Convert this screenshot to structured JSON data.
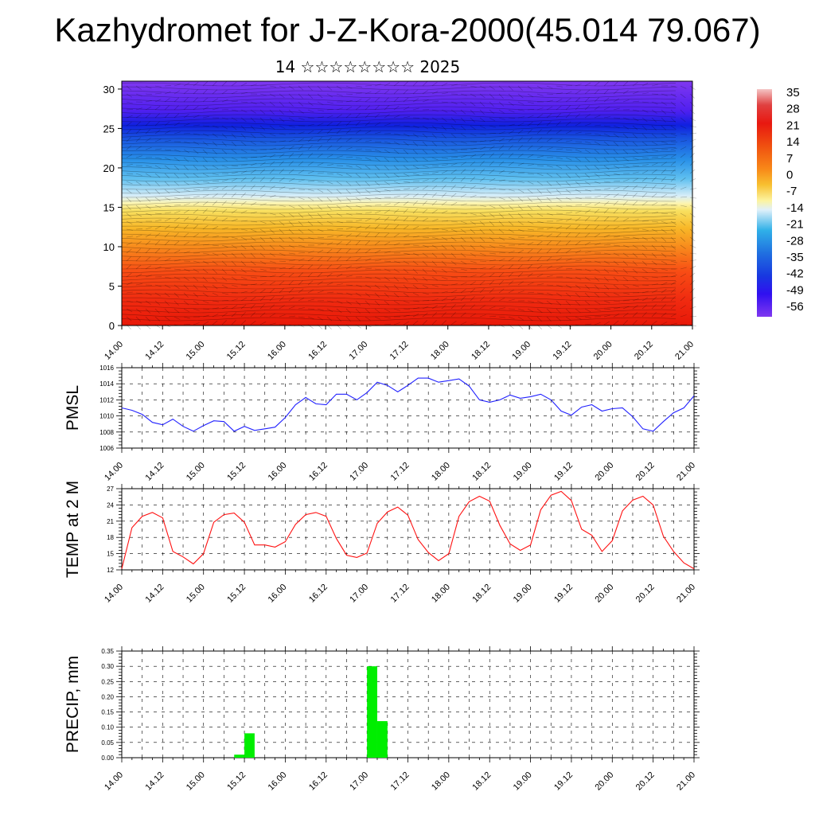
{
  "title": "Kazhydromet for J-Z-Kora-2000(45.014 79.067)",
  "subtitle": "14 ☆☆☆☆☆☆☆☆ 2025",
  "time_ticks": [
    "14.00",
    "14.12",
    "15.00",
    "15.12",
    "16.00",
    "16.12",
    "17.00",
    "17.12",
    "18.00",
    "18.12",
    "19.00",
    "19.12",
    "20.00",
    "20.12",
    "21.00"
  ],
  "colorbar": {
    "labels": [
      "35",
      "28",
      "21",
      "14",
      "7",
      "0",
      "-7",
      "-14",
      "-21",
      "-28",
      "-35",
      "-42",
      "-49",
      "-56"
    ],
    "stops": [
      "#f4c4c4",
      "#e03030",
      "#e82010",
      "#f04a10",
      "#f87818",
      "#f8a020",
      "#f8d040",
      "#fcf8a0",
      "#e8f4fc",
      "#20a8e8",
      "#2070e0",
      "#1838e0",
      "#3808f0",
      "#8038f0"
    ]
  },
  "chart_data": [
    {
      "type": "heatmap",
      "title": "",
      "ylabel": "",
      "ylim": [
        0,
        31
      ],
      "yticks": [
        "0",
        "5",
        "10",
        "15",
        "20",
        "25",
        "30"
      ],
      "x": [
        "14.00",
        "14.12",
        "15.00",
        "15.12",
        "16.00",
        "16.12",
        "17.00",
        "17.12",
        "18.00",
        "18.12",
        "19.00",
        "19.12",
        "20.00",
        "20.12",
        "21.00"
      ],
      "description_of_field": "temperature cross-section with wind barbs; warm (red) near surface, cold (purple) aloft",
      "vlim": [
        -56,
        35
      ]
    },
    {
      "type": "line",
      "ylabel": "PMSL",
      "ylim": [
        1006,
        1016
      ],
      "yticks": [
        "1006",
        "1008",
        "1010",
        "1012",
        "1014",
        "1016"
      ],
      "color": "#2020ff",
      "x_hours": [
        0,
        3,
        6,
        9,
        12,
        15,
        18,
        21,
        24,
        27,
        30,
        33,
        36,
        39,
        42,
        45,
        48,
        51,
        54,
        57,
        60,
        63,
        66,
        69,
        72,
        75,
        78,
        81,
        84,
        87,
        90,
        93,
        96,
        99,
        102,
        105,
        108,
        111,
        114,
        117,
        120,
        123,
        126,
        129,
        132,
        135,
        138,
        141,
        144,
        147,
        150,
        153,
        156,
        159,
        162,
        165,
        168
      ],
      "values": [
        1011.0,
        1010.7,
        1010.2,
        1009.2,
        1008.9,
        1009.6,
        1008.7,
        1008.1,
        1008.8,
        1009.4,
        1009.3,
        1008.1,
        1008.7,
        1008.2,
        1008.4,
        1008.6,
        1009.8,
        1011.4,
        1012.3,
        1011.5,
        1011.4,
        1012.7,
        1012.7,
        1012.0,
        1012.9,
        1014.2,
        1013.8,
        1013.0,
        1013.8,
        1014.7,
        1014.7,
        1014.2,
        1014.4,
        1014.6,
        1013.7,
        1012.0,
        1011.7,
        1012.0,
        1012.6,
        1012.2,
        1012.4,
        1012.7,
        1012.0,
        1010.6,
        1010.1,
        1011.1,
        1011.4,
        1010.6,
        1010.9,
        1011.0,
        1009.9,
        1008.4,
        1008.1,
        1009.3,
        1010.4,
        1011.0,
        1012.5
      ]
    },
    {
      "type": "line",
      "ylabel": "TEMP at 2 M",
      "ylim": [
        12,
        27
      ],
      "yticks": [
        "12",
        "15",
        "18",
        "21",
        "24",
        "27"
      ],
      "color": "#ff1010",
      "x_hours": [
        0,
        3,
        6,
        9,
        12,
        15,
        18,
        21,
        24,
        27,
        30,
        33,
        36,
        39,
        42,
        45,
        48,
        51,
        54,
        57,
        60,
        63,
        66,
        69,
        72,
        75,
        78,
        81,
        84,
        87,
        90,
        93,
        96,
        99,
        102,
        105,
        108,
        111,
        114,
        117,
        120,
        123,
        126,
        129,
        132,
        135,
        138,
        141,
        144,
        147,
        150,
        153,
        156,
        159,
        162,
        165,
        168
      ],
      "values": [
        12.2,
        19.8,
        21.9,
        22.6,
        21.6,
        15.4,
        14.4,
        13.1,
        15.0,
        20.8,
        22.2,
        22.5,
        20.8,
        16.6,
        16.6,
        16.2,
        17.2,
        20.4,
        22.2,
        22.6,
        21.9,
        17.8,
        14.7,
        14.3,
        15.1,
        20.6,
        22.7,
        23.6,
        22.1,
        17.6,
        15.2,
        13.7,
        15.0,
        21.9,
        24.6,
        25.6,
        24.7,
        20.2,
        16.8,
        15.6,
        16.6,
        23.1,
        25.8,
        26.5,
        24.8,
        19.5,
        18.4,
        15.4,
        17.4,
        22.9,
        24.9,
        25.6,
        24.0,
        18.2,
        15.4,
        13.3,
        12.2
      ]
    },
    {
      "type": "bar",
      "ylabel": "PRECIP, mm",
      "ylim": [
        0,
        0.35
      ],
      "yticks": [
        "0.00",
        "0.05",
        "0.10",
        "0.15",
        "0.20",
        "0.25",
        "0.30",
        "0.35"
      ],
      "color": "#00ee00",
      "bars": [
        {
          "start_hour": 33,
          "end_hour": 36,
          "value": 0.01
        },
        {
          "start_hour": 36,
          "end_hour": 39,
          "value": 0.08
        },
        {
          "start_hour": 72,
          "end_hour": 75,
          "value": 0.3
        },
        {
          "start_hour": 75,
          "end_hour": 78,
          "value": 0.12
        }
      ]
    }
  ]
}
